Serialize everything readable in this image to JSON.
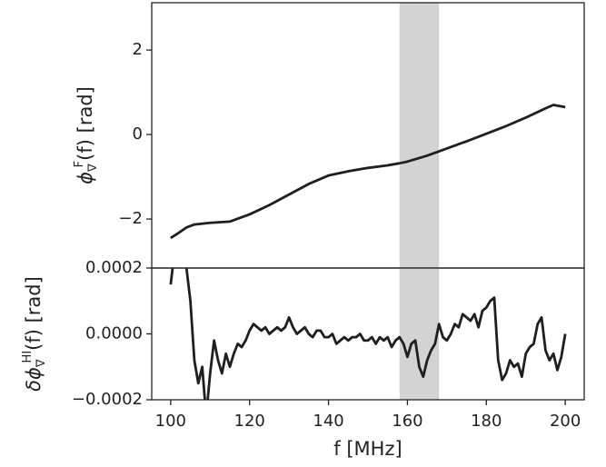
{
  "chart_data": [
    {
      "type": "line",
      "ylabel": {
        "symbol": "ϕ",
        "sub": "∇",
        "sup": "F",
        "rest": "(f) [rad]"
      },
      "x": [
        100,
        102,
        104,
        106,
        110,
        115,
        120,
        125,
        130,
        135,
        140,
        145,
        150,
        155,
        158,
        160,
        165,
        170,
        175,
        180,
        185,
        190,
        195,
        197,
        200
      ],
      "series": [
        {
          "color": "#1f1f1f",
          "values": [
            -2.45,
            -2.33,
            -2.2,
            -2.13,
            -2.09,
            -2.06,
            -1.89,
            -1.67,
            -1.42,
            -1.17,
            -0.97,
            -0.87,
            -0.79,
            -0.73,
            -0.68,
            -0.64,
            -0.5,
            -0.33,
            -0.16,
            0.02,
            0.2,
            0.4,
            0.62,
            0.7,
            0.65
          ]
        }
      ],
      "xlim": [
        95.2,
        204.8
      ],
      "ylim": [
        -3.16,
        3.12
      ],
      "yticks": [
        {
          "value": -2,
          "label": "−2"
        },
        0,
        2
      ],
      "shaded_region": [
        158,
        168
      ],
      "shade_color": "#d3d3d3"
    },
    {
      "type": "line",
      "ylabel": {
        "symbol": "δϕ",
        "sub": "∇",
        "sup": "HI",
        "rest": "(f) [rad]"
      },
      "xlabel": "f [MHz]",
      "x": [
        100,
        101,
        102,
        103,
        104,
        105,
        106,
        107,
        108,
        109,
        110,
        111,
        112,
        113,
        114,
        115,
        116,
        117,
        118,
        119,
        120,
        121,
        122,
        123,
        124,
        125,
        126,
        127,
        128,
        129,
        130,
        131,
        132,
        133,
        134,
        135,
        136,
        137,
        138,
        139,
        140,
        141,
        142,
        143,
        144,
        145,
        146,
        147,
        148,
        149,
        150,
        151,
        152,
        153,
        154,
        155,
        156,
        157,
        158,
        159,
        160,
        161,
        162,
        163,
        164,
        165,
        166,
        167,
        168,
        169,
        170,
        171,
        172,
        173,
        174,
        175,
        176,
        177,
        178,
        179,
        180,
        181,
        182,
        183,
        184,
        185,
        186,
        187,
        188,
        189,
        190,
        191,
        192,
        193,
        194,
        195,
        196,
        197,
        198,
        199,
        200
      ],
      "series": [
        {
          "color": "#1f1f1f",
          "values": [
            0.00015,
            0.00025,
            0.0003,
            0.0003,
            0.0002,
            0.0001,
            -8e-05,
            -0.00015,
            -0.0001,
            -0.00025,
            -0.00012,
            -2e-05,
            -8e-05,
            -0.00012,
            -6e-05,
            -0.0001,
            -6e-05,
            -3e-05,
            -4e-05,
            -2e-05,
            1e-05,
            3e-05,
            2e-05,
            1e-05,
            2e-05,
            0.0,
            1e-05,
            2e-05,
            1e-05,
            2e-05,
            5e-05,
            2e-05,
            0.0,
            1e-05,
            2e-05,
            0.0,
            -1e-05,
            1e-05,
            1e-05,
            -1e-05,
            -1e-05,
            0.0,
            -3e-05,
            -2e-05,
            -1e-05,
            -2e-05,
            -1e-05,
            -1e-05,
            0.0,
            -2e-05,
            -2e-05,
            -1e-05,
            -3e-05,
            -1e-05,
            -2e-05,
            -1e-05,
            -4e-05,
            -2e-05,
            -1e-05,
            -3e-05,
            -7e-05,
            -3e-05,
            -2e-05,
            -0.0001,
            -0.00013,
            -8e-05,
            -5e-05,
            -3e-05,
            3e-05,
            -1e-05,
            -2e-05,
            0.0,
            3e-05,
            2e-05,
            6e-05,
            5e-05,
            4e-05,
            6e-05,
            2e-05,
            7e-05,
            8e-05,
            0.0001,
            0.00011,
            -8e-05,
            -0.00014,
            -0.00012,
            -8e-05,
            -0.0001,
            -9e-05,
            -0.00013,
            -6e-05,
            -4e-05,
            -3e-05,
            3e-05,
            5e-05,
            -5e-05,
            -8e-05,
            -6e-05,
            -0.00011,
            -7e-05,
            0.0
          ]
        }
      ],
      "xlim": [
        95.2,
        204.8
      ],
      "ylim": [
        -0.0002,
        0.0002
      ],
      "xticks": [
        100,
        120,
        140,
        160,
        180,
        200
      ],
      "yticks": [
        {
          "value": -0.0002,
          "label": "−0.0002"
        },
        {
          "value": 0.0,
          "label": "0.0000"
        },
        {
          "value": 0.0002,
          "label": "0.0002"
        }
      ],
      "shaded_region": [
        158,
        168
      ],
      "shade_color": "#d3d3d3"
    }
  ]
}
